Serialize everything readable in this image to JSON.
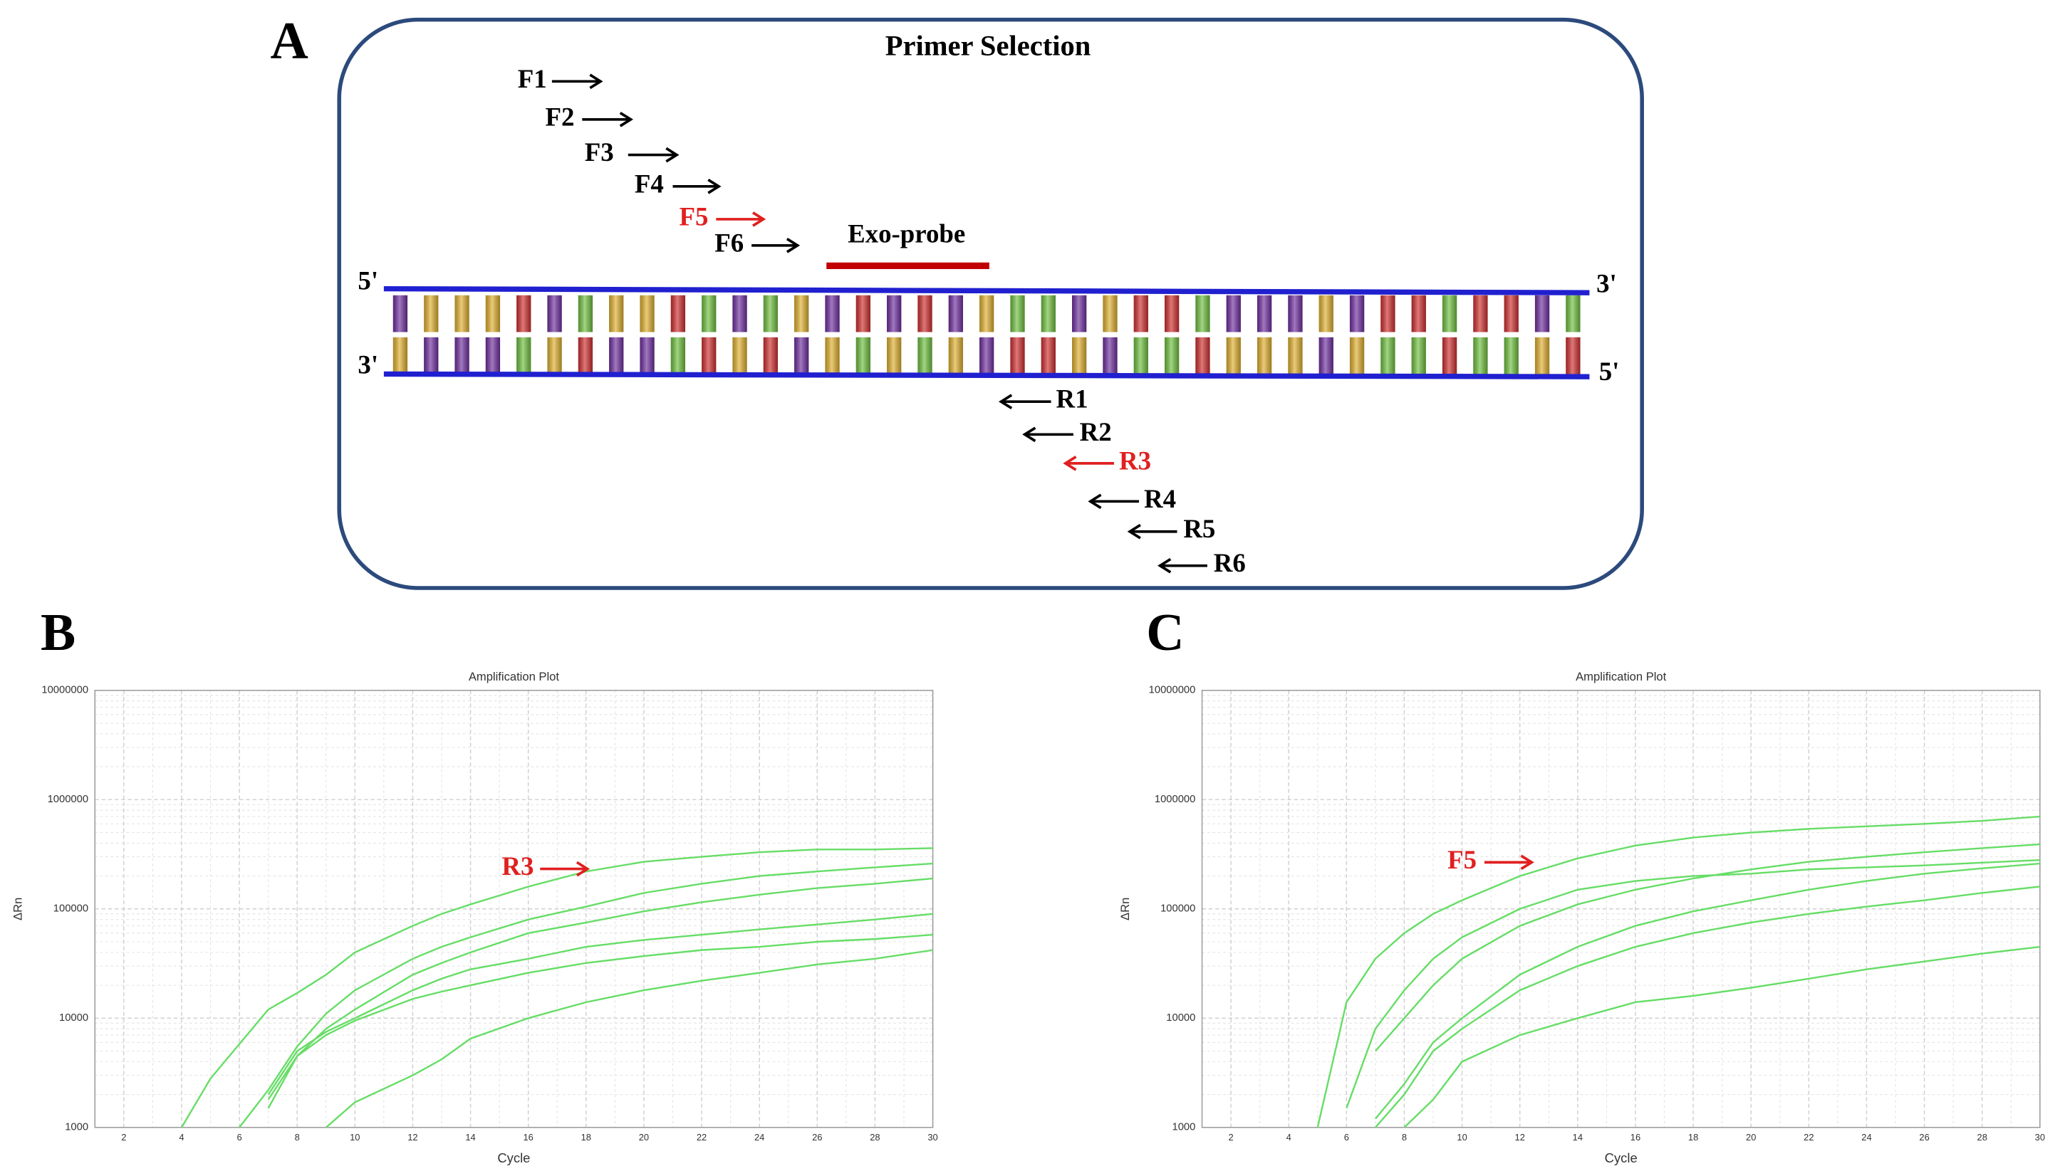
{
  "panel_a": {
    "label": "A",
    "title": "Primer Selection",
    "probe": "Exo-probe",
    "strand_ends": [
      "5'",
      "3'",
      "3'",
      "5'"
    ],
    "forward": [
      {
        "label": "F1",
        "color": "#000000"
      },
      {
        "label": "F2",
        "color": "#000000"
      },
      {
        "label": "F3",
        "color": "#000000"
      },
      {
        "label": "F4",
        "color": "#000000"
      },
      {
        "label": "F5",
        "color": "#e02020"
      },
      {
        "label": "F6",
        "color": "#000000"
      }
    ],
    "reverse": [
      {
        "label": "R1",
        "color": "#000000"
      },
      {
        "label": "R2",
        "color": "#000000"
      },
      {
        "label": "R3",
        "color": "#e02020"
      },
      {
        "label": "R4",
        "color": "#000000"
      },
      {
        "label": "R5",
        "color": "#000000"
      },
      {
        "label": "R6",
        "color": "#000000"
      }
    ]
  },
  "chart_data": [
    {
      "type": "line",
      "panel": "B",
      "title": "Amplification Plot",
      "x_label": "Cycle",
      "y_label": "ΔRn",
      "x": [
        4,
        5,
        6,
        7,
        8,
        9,
        10,
        12,
        13,
        14,
        16,
        18,
        20,
        22,
        24,
        26,
        28,
        30
      ],
      "series": [
        {
          "color": "#66dd66",
          "values": [
            1000,
            2800,
            5800,
            12000,
            17000,
            25000,
            40000,
            70000,
            90000,
            110000,
            160000,
            220000,
            270000,
            300000,
            330000,
            350000,
            350000,
            360000
          ]
        },
        {
          "color": "#66dd66",
          "values": [
            null,
            null,
            1000,
            2200,
            5500,
            11000,
            18000,
            35000,
            45000,
            55000,
            80000,
            105000,
            140000,
            170000,
            200000,
            220000,
            240000,
            260000
          ]
        },
        {
          "color": "#66dd66",
          "values": [
            null,
            null,
            null,
            1500,
            4500,
            8000,
            12000,
            25000,
            32000,
            40000,
            60000,
            75000,
            95000,
            115000,
            135000,
            155000,
            170000,
            190000
          ]
        },
        {
          "color": "#66dd66",
          "values": [
            null,
            null,
            null,
            2000,
            5000,
            7500,
            10000,
            18000,
            23000,
            28000,
            35000,
            45000,
            52000,
            58000,
            65000,
            72000,
            80000,
            90000
          ]
        },
        {
          "color": "#66dd66",
          "values": [
            null,
            null,
            null,
            1800,
            4500,
            7000,
            9500,
            15000,
            17500,
            20000,
            26000,
            32000,
            37000,
            42000,
            45000,
            50000,
            53000,
            58000
          ]
        },
        {
          "color": "#66dd66",
          "values": [
            null,
            null,
            null,
            null,
            null,
            1000,
            1700,
            3000,
            4200,
            6500,
            10000,
            14000,
            18000,
            22000,
            26000,
            31000,
            35000,
            42000
          ]
        }
      ],
      "xlim": [
        1,
        30
      ],
      "xticks": [
        2,
        4,
        6,
        8,
        10,
        12,
        14,
        16,
        18,
        20,
        22,
        24,
        26,
        28,
        30
      ],
      "ylim": [
        1000,
        10000000
      ],
      "yticks": [
        1000,
        10000,
        100000,
        1000000,
        10000000
      ],
      "log_y": true,
      "grid": true,
      "annotations": [
        {
          "text": "R3",
          "color": "#e02020"
        }
      ]
    },
    {
      "type": "line",
      "panel": "C",
      "title": "Amplification Plot",
      "x_label": "Cycle",
      "y_label": "ΔRn",
      "x": [
        5,
        6,
        7,
        8,
        9,
        10,
        12,
        14,
        16,
        18,
        20,
        22,
        24,
        26,
        28,
        30
      ],
      "series": [
        {
          "color": "#66dd66",
          "values": [
            1000,
            14000,
            35000,
            60000,
            90000,
            120000,
            200000,
            290000,
            380000,
            450000,
            500000,
            540000,
            570000,
            600000,
            640000,
            700000
          ]
        },
        {
          "color": "#66dd66",
          "values": [
            null,
            1500,
            8000,
            18000,
            35000,
            55000,
            100000,
            150000,
            180000,
            200000,
            210000,
            230000,
            240000,
            250000,
            265000,
            280000
          ]
        },
        {
          "color": "#66dd66",
          "values": [
            null,
            null,
            5000,
            10000,
            20000,
            35000,
            70000,
            110000,
            150000,
            190000,
            230000,
            270000,
            300000,
            330000,
            360000,
            390000
          ]
        },
        {
          "color": "#66dd66",
          "values": [
            null,
            null,
            1200,
            2500,
            6000,
            10000,
            25000,
            45000,
            70000,
            95000,
            120000,
            150000,
            180000,
            210000,
            235000,
            260000
          ]
        },
        {
          "color": "#66dd66",
          "values": [
            null,
            null,
            1000,
            2000,
            5000,
            8000,
            18000,
            30000,
            45000,
            60000,
            75000,
            90000,
            105000,
            120000,
            140000,
            160000
          ]
        },
        {
          "color": "#66dd66",
          "values": [
            null,
            null,
            null,
            1000,
            1800,
            4000,
            7000,
            10000,
            14000,
            16000,
            19000,
            23000,
            28000,
            33000,
            39000,
            45000
          ]
        }
      ],
      "xlim": [
        1,
        30
      ],
      "xticks": [
        2,
        4,
        6,
        8,
        10,
        12,
        14,
        16,
        18,
        20,
        22,
        24,
        26,
        28,
        30
      ],
      "ylim": [
        1000,
        10000000
      ],
      "yticks": [
        1000,
        10000,
        100000,
        1000000,
        10000000
      ],
      "log_y": true,
      "grid": true,
      "annotations": [
        {
          "text": "F5",
          "color": "#e02020"
        }
      ]
    }
  ]
}
